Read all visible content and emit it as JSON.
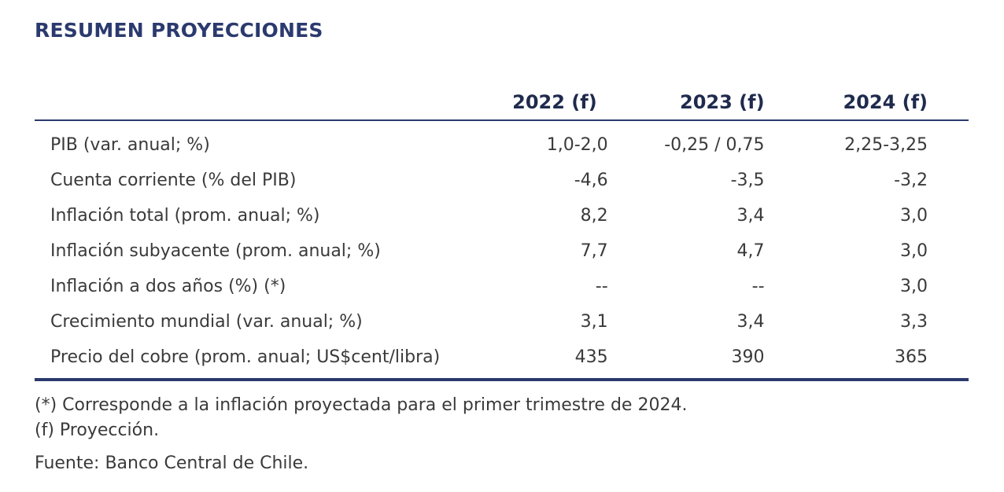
{
  "title": "RESUMEN PROYECCIONES",
  "columns": [
    "2022 (f)",
    "2023 (f)",
    "2024 (f)"
  ],
  "rows": [
    {
      "label": "PIB (var. anual; %)",
      "values": [
        "1,0-2,0",
        "-0,25 / 0,75",
        "2,25-3,25"
      ]
    },
    {
      "label": "Cuenta corriente (% del PIB)",
      "values": [
        "-4,6",
        "-3,5",
        "-3,2"
      ]
    },
    {
      "label": "Inflación total (prom. anual; %)",
      "values": [
        "8,2",
        "3,4",
        "3,0"
      ]
    },
    {
      "label": "Inflación subyacente (prom. anual; %)",
      "values": [
        "7,7",
        "4,7",
        "3,0"
      ]
    },
    {
      "label": "Inflación a dos años (%) (*)",
      "values": [
        "--",
        "--",
        "3,0"
      ]
    },
    {
      "label": "Crecimiento mundial (var. anual; %)",
      "values": [
        "3,1",
        "3,4",
        "3,3"
      ]
    },
    {
      "label": "Precio del cobre (prom. anual; US$cent/libra)",
      "values": [
        "435",
        "390",
        "365"
      ]
    }
  ],
  "notes": [
    "(*) Corresponde a la inflación proyectada para el primer trimestre de 2024.",
    "(f) Proyección."
  ],
  "source": "Fuente: Banco Central de Chile."
}
